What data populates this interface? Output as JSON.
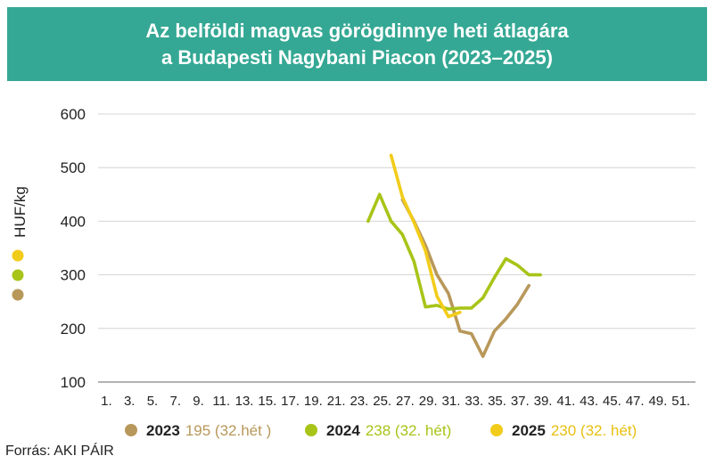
{
  "title_line1": "Az belföldi magvas görögdinnye  heti átlagára",
  "title_line2": "a Budapesti Nagybani Piacon (2023–2025)",
  "source": "Forrás: AKI PÁIR",
  "colors": {
    "header_bg": "#34a894",
    "y2023": "#b8985a",
    "y2024": "#a8c418",
    "y2025": "#f2cc1a"
  },
  "legend": [
    {
      "year": "2023",
      "note": "195 (32.hét )",
      "color": "#b8985a"
    },
    {
      "year": "2024",
      "note": "238 (32. hét)",
      "color": "#a8c418"
    },
    {
      "year": "2025",
      "note": "230 (32. hét)",
      "color": "#f2cc1a"
    }
  ],
  "chart_data": {
    "type": "line",
    "ylabel": "HUF/kg",
    "xlabel": "",
    "ylim": [
      100,
      600
    ],
    "xlim": [
      1,
      52
    ],
    "yticks": [
      100,
      200,
      300,
      400,
      500,
      600
    ],
    "xticks": [
      1,
      3,
      5,
      7,
      9,
      11,
      13,
      15,
      17,
      19,
      21,
      23,
      25,
      27,
      29,
      31,
      33,
      35,
      37,
      39,
      41,
      43,
      45,
      47,
      49,
      51
    ],
    "xtick_labels": [
      "1.",
      "3.",
      "5.",
      "7.",
      "9.",
      "11.",
      "13.",
      "15.",
      "17.",
      "19.",
      "21.",
      "23.",
      "25.",
      "27.",
      "29.",
      "31.",
      "33.",
      "35.",
      "37.",
      "39.",
      "41.",
      "43.",
      "45.",
      "47.",
      "49.",
      "51."
    ],
    "grid": true,
    "series": [
      {
        "name": "2023",
        "color": "#b8985a",
        "x": [
          27,
          28,
          29,
          30,
          31,
          32,
          33,
          34,
          35,
          36,
          37,
          38
        ],
        "y": [
          440,
          400,
          355,
          300,
          265,
          195,
          190,
          148,
          195,
          218,
          245,
          280
        ]
      },
      {
        "name": "2024",
        "color": "#a8c418",
        "x": [
          24,
          25,
          26,
          27,
          28,
          29,
          30,
          31,
          32,
          33,
          34,
          35,
          36,
          37,
          38,
          39
        ],
        "y": [
          400,
          450,
          400,
          375,
          325,
          240,
          243,
          236,
          238,
          238,
          257,
          295,
          330,
          318,
          300,
          300
        ]
      },
      {
        "name": "2025",
        "color": "#f2cc1a",
        "x": [
          26,
          27,
          28,
          29,
          30,
          31,
          32
        ],
        "y": [
          523,
          445,
          398,
          345,
          260,
          222,
          230
        ]
      }
    ]
  }
}
